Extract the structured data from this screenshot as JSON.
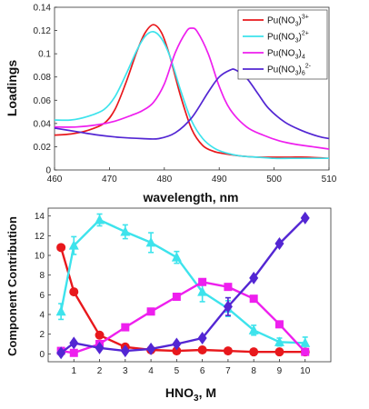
{
  "colors": {
    "red": "#e8181c",
    "cyan": "#3de3ec",
    "magenta": "#ee1fee",
    "blue": "#5326d3"
  },
  "chart_data": [
    {
      "type": "line",
      "xlabel": "wavelength, nm",
      "ylabel": "Loadings",
      "xlim": [
        460,
        510
      ],
      "ylim": [
        0,
        0.14
      ],
      "xticks": [
        "460",
        "470",
        "480",
        "490",
        "500",
        "510"
      ],
      "yticks": [
        "0",
        "0.02",
        "0.04",
        "0.06",
        "0.08",
        "0.1",
        "0.12",
        "0.14"
      ],
      "legend_position": "top-right",
      "legend": [
        {
          "base": "Pu(NO",
          "sub": "3",
          "close": ")",
          "sup": "3+"
        },
        {
          "base": "Pu(NO",
          "sub": "3",
          "close": ")",
          "sup": "2+"
        },
        {
          "base": "Pu(NO",
          "sub": "3",
          "close": ")",
          "sup": "",
          "post_sub": "4"
        },
        {
          "base": "Pu(NO",
          "sub": "3",
          "close": ")",
          "sup": "2-",
          "post_sub": "6"
        }
      ],
      "series": [
        {
          "color": "red",
          "x": [
            460,
            463,
            466,
            469,
            471,
            473,
            475,
            476.5,
            478,
            479.5,
            481,
            483,
            485,
            487,
            489,
            491,
            494,
            497,
            500,
            503,
            506,
            510
          ],
          "y": [
            0.03,
            0.031,
            0.034,
            0.04,
            0.052,
            0.075,
            0.102,
            0.118,
            0.125,
            0.118,
            0.098,
            0.063,
            0.035,
            0.021,
            0.016,
            0.014,
            0.012,
            0.011,
            0.011,
            0.011,
            0.011,
            0.01
          ]
        },
        {
          "color": "cyan",
          "x": [
            460,
            463,
            466,
            469,
            471,
            473,
            475,
            476.5,
            478,
            479.5,
            481,
            483,
            485,
            487,
            489,
            491,
            494,
            497,
            500,
            503,
            506,
            510
          ],
          "y": [
            0.043,
            0.043,
            0.046,
            0.052,
            0.063,
            0.082,
            0.103,
            0.115,
            0.119,
            0.113,
            0.098,
            0.068,
            0.042,
            0.027,
            0.019,
            0.015,
            0.012,
            0.011,
            0.01,
            0.01,
            0.01,
            0.01
          ]
        },
        {
          "color": "magenta",
          "x": [
            460,
            464,
            468,
            471,
            474,
            476,
            478,
            480,
            482,
            484,
            485,
            486,
            488,
            490,
            492,
            495,
            498,
            501,
            504,
            507,
            510
          ],
          "y": [
            0.037,
            0.037,
            0.039,
            0.042,
            0.047,
            0.051,
            0.058,
            0.074,
            0.101,
            0.119,
            0.122,
            0.119,
            0.1,
            0.072,
            0.052,
            0.037,
            0.03,
            0.025,
            0.022,
            0.02,
            0.018
          ]
        },
        {
          "color": "blue",
          "x": [
            460,
            464,
            468,
            472,
            476,
            479,
            482,
            485,
            488,
            490,
            492,
            493,
            495,
            497,
            499,
            502,
            505,
            508,
            510
          ],
          "y": [
            0.036,
            0.033,
            0.03,
            0.028,
            0.027,
            0.027,
            0.032,
            0.045,
            0.067,
            0.08,
            0.086,
            0.086,
            0.079,
            0.066,
            0.053,
            0.041,
            0.034,
            0.029,
            0.027
          ]
        }
      ]
    },
    {
      "type": "line",
      "xlabel": "HNO",
      "xlabel_sub": "3",
      "xlabel_tail": ", M",
      "ylabel": "Component Contribution",
      "xlim": [
        0,
        11
      ],
      "ylim": [
        -0.8,
        14.8
      ],
      "xticks": [
        "1",
        "2",
        "3",
        "4",
        "5",
        "6",
        "7",
        "8",
        "9",
        "10"
      ],
      "yticks": [
        "0",
        "2",
        "4",
        "6",
        "8",
        "10",
        "12",
        "14"
      ],
      "x": [
        0.5,
        1,
        2,
        3,
        4,
        5,
        6,
        7,
        8,
        9,
        10
      ],
      "series": [
        {
          "color": "red",
          "marker": "circle",
          "y": [
            10.8,
            6.3,
            1.9,
            0.7,
            0.4,
            0.3,
            0.4,
            0.3,
            0.2,
            0.2,
            0.2
          ],
          "err": [
            0,
            0,
            0,
            0,
            0,
            0,
            0,
            0,
            0,
            0,
            0
          ]
        },
        {
          "color": "cyan",
          "marker": "triangle",
          "y": [
            4.3,
            11.0,
            13.6,
            12.4,
            11.3,
            9.8,
            6.3,
            4.6,
            2.4,
            1.2,
            1.1
          ],
          "err": [
            0.8,
            0.9,
            0.6,
            0.7,
            1.0,
            0.6,
            1.0,
            0.8,
            0.5,
            0.4,
            0.6
          ]
        },
        {
          "color": "magenta",
          "marker": "square",
          "y": [
            0.3,
            0.1,
            1.0,
            2.7,
            4.3,
            5.8,
            7.3,
            6.8,
            5.6,
            3.0,
            0.2
          ],
          "err": [
            0,
            0,
            0,
            0,
            0,
            0,
            0.3,
            0,
            0,
            0,
            0
          ]
        },
        {
          "color": "blue",
          "marker": "diamond",
          "y": [
            0.1,
            1.1,
            0.6,
            0.3,
            0.5,
            1.0,
            1.6,
            4.8,
            7.7,
            11.2,
            13.8
          ],
          "err": [
            0,
            0,
            0,
            0,
            0,
            0,
            0,
            0.9,
            0,
            0,
            0
          ]
        }
      ]
    }
  ]
}
